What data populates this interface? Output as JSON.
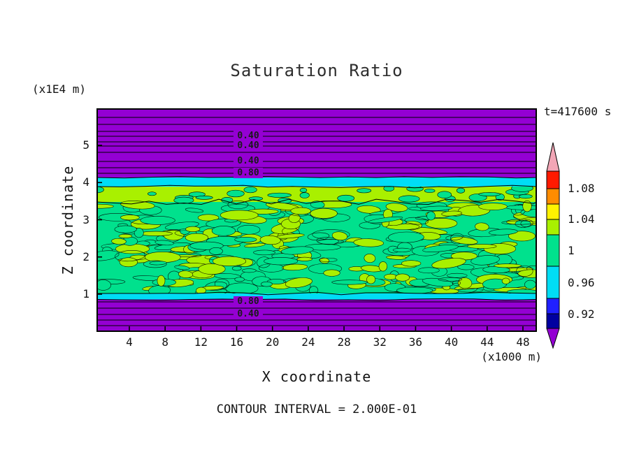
{
  "title": "Saturation Ratio",
  "time_label": "t=417600 s",
  "y_axis": {
    "unit": "(x1E4 m)",
    "label": "Z coordinate",
    "ticks": [
      "5",
      "4",
      "3",
      "2",
      "1"
    ]
  },
  "x_axis": {
    "unit": "(x1000 m)",
    "label": "X coordinate",
    "ticks": [
      "4",
      "8",
      "12",
      "16",
      "20",
      "24",
      "28",
      "32",
      "36",
      "40",
      "44",
      "48"
    ]
  },
  "footer": {
    "contour_interval": "CONTOUR INTERVAL = 2.000E-01"
  },
  "colorbar": {
    "labels": [
      "1.08",
      "1.04",
      "1",
      "0.96",
      "0.92"
    ],
    "segment_colors_top_to_bottom": [
      "red",
      "orange",
      "yellow",
      "yellow_green",
      "green",
      "cyan",
      "blue",
      "navy"
    ],
    "above_range_color": "pink",
    "below_range_color": "purple"
  },
  "contour_line_labels": [
    "0.40",
    "0.40",
    "0.40",
    "0.80",
    "0.80",
    "0.40"
  ],
  "colors": {
    "background": "#ffffff",
    "frame": "#000000",
    "contour_line": "#000000",
    "purple": "#9400d3",
    "cyan": "#00ddf5",
    "green": "#00e18d",
    "yellow_green": "#a9f000",
    "red": "#ff1a00",
    "orange": "#ff8c00",
    "yellow": "#fff200",
    "blue": "#2020ff",
    "navy": "#0000a0",
    "pink": "#f2a6b6"
  },
  "chart_data": {
    "type": "heatmap",
    "title": "Saturation Ratio",
    "xlabel": "X coordinate",
    "x_unit": "x1000 m",
    "x_ticks": [
      4,
      8,
      12,
      16,
      20,
      24,
      28,
      32,
      36,
      40,
      44,
      48
    ],
    "x_range": [
      0,
      49.5
    ],
    "ylabel": "Z coordinate",
    "y_unit": "x1E4 m",
    "y_ticks": [
      1,
      2,
      3,
      4,
      5
    ],
    "y_range": [
      0,
      6
    ],
    "time_seconds": 417600,
    "contour_interval": 0.2,
    "colorbar_tick_values": [
      1.08,
      1.04,
      1,
      0.96,
      0.92
    ],
    "contour_label_values_top_region": [
      0.4,
      0.4,
      0.4,
      0.8
    ],
    "contour_label_values_bottom_region": [
      0.8,
      0.4
    ],
    "regions_top_to_bottom": [
      {
        "z_range": [
          4.2,
          6.0
        ],
        "value": "< 0.9, decreasing upward through layered contours 0.80 and 0.40",
        "color": "purple"
      },
      {
        "z_range": [
          4.05,
          4.2
        ],
        "value": "~0.92-0.96 narrow band",
        "color": "cyan"
      },
      {
        "z_range": [
          3.8,
          4.05
        ],
        "value": "~1.00-1.04 band",
        "color": "yellow_green"
      },
      {
        "z_range": [
          1.1,
          3.8
        ],
        "value": "mottled ~0.96-1.04 mixture around saturation",
        "colors": [
          "green",
          "yellow_green"
        ]
      },
      {
        "z_range": [
          0.95,
          1.1
        ],
        "value": "~0.92-0.96 narrow band",
        "color": "cyan"
      },
      {
        "z_range": [
          0.0,
          0.95
        ],
        "value": "< 0.9, decreasing downward through contours 0.80 and 0.40",
        "color": "purple"
      }
    ]
  }
}
